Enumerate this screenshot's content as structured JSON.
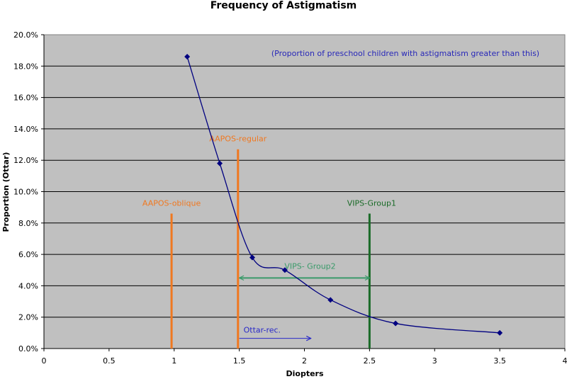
{
  "chart_data": {
    "type": "scatter",
    "title": "Frequency of Astigmatism",
    "xlabel": "Diopters",
    "ylabel": "Proportion (Ottar)",
    "xlim": [
      0,
      4
    ],
    "ylim": [
      0,
      0.2
    ],
    "x_ticks": [
      "0",
      "0.5",
      "1",
      "1.5",
      "2",
      "2.5",
      "3",
      "3.5",
      "4"
    ],
    "y_ticks": [
      "0.0%",
      "2.0%",
      "4.0%",
      "6.0%",
      "8.0%",
      "10.0%",
      "12.0%",
      "14.0%",
      "16.0%",
      "18.0%",
      "20.0%"
    ],
    "grid": true,
    "legend": "none",
    "series": [
      {
        "color": "#000080",
        "x": [
          1.1,
          1.35,
          1.6,
          1.85,
          2.2,
          2.7,
          3.5
        ],
        "y": [
          0.186,
          0.118,
          0.058,
          0.05,
          0.031,
          0.016,
          0.01
        ]
      }
    ],
    "vertical_lines": [
      {
        "label": "AAPOS-oblique",
        "x": 0.98,
        "y_top": 0.086,
        "color": "#F07820"
      },
      {
        "label": "AAPOS-regular",
        "x": 1.49,
        "y_top": 0.127,
        "color": "#F07820"
      },
      {
        "label": "VIPS-Group1",
        "x": 2.5,
        "y_top": 0.086,
        "color": "#1A6B28"
      }
    ],
    "arrows": [
      {
        "label": "VIPS- Group2",
        "x1": 1.5,
        "x2": 2.5,
        "y": 0.045,
        "double": true,
        "color": "#3A9A6A"
      },
      {
        "label": "Ottar-rec.",
        "x1": 1.5,
        "x2": 2.05,
        "y": 0.0065,
        "double": false,
        "color": "#2828C8"
      }
    ],
    "annotation": {
      "text": "(Proportion of preschool children with astigmatism greater than this)",
      "color": "#2828B8"
    },
    "colors": {
      "plot_bg": "#C0C0C0",
      "grid": "#000000"
    }
  }
}
